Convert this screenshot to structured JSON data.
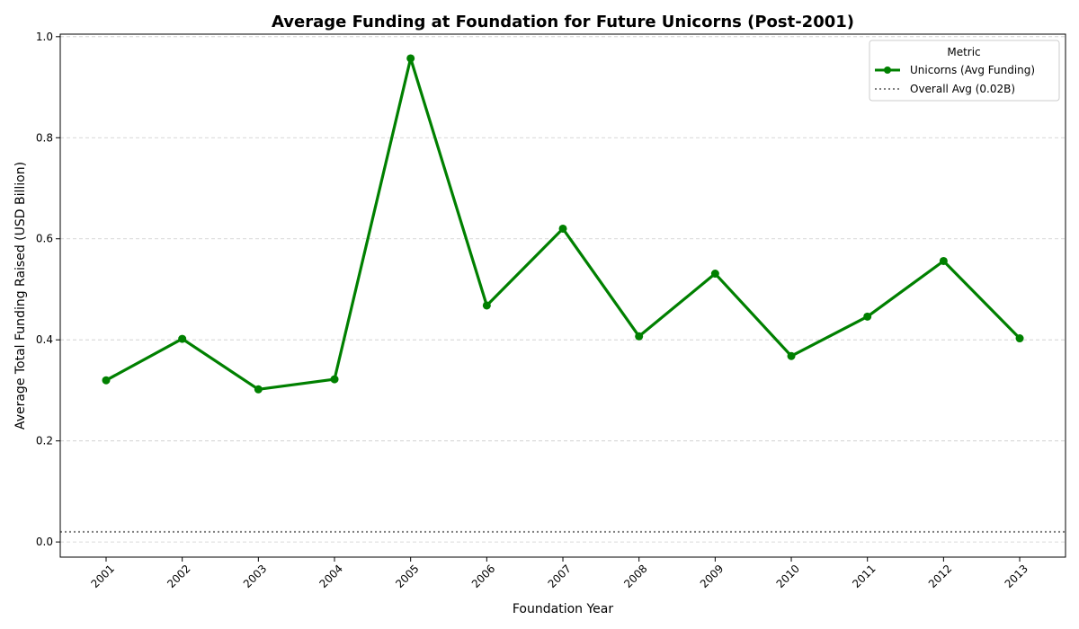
{
  "chart_data": {
    "type": "line",
    "title": "Average Funding at Foundation for Future Unicorns (Post-2001)",
    "xlabel": "Foundation Year",
    "ylabel": "Average Total Funding Raised (USD Billion)",
    "x": [
      "2001",
      "2002",
      "2003",
      "2004",
      "2005",
      "2006",
      "2007",
      "2008",
      "2009",
      "2010",
      "2011",
      "2012",
      "2013"
    ],
    "series": [
      {
        "name": "Unicorns (Avg Funding)",
        "color": "#008000",
        "values": [
          0.32,
          0.402,
          0.302,
          0.322,
          0.957,
          0.468,
          0.62,
          0.407,
          0.531,
          0.368,
          0.446,
          0.556,
          0.403
        ]
      }
    ],
    "reference_line": {
      "name": "Overall Avg (0.02B)",
      "value": 0.02,
      "color": "#808080",
      "style": "dotted"
    },
    "ylim": [
      -0.03,
      1.005
    ],
    "yticks": [
      "0.0",
      "0.2",
      "0.4",
      "0.6",
      "0.8",
      "1.0"
    ],
    "grid": "horizontal-dashed",
    "legend": {
      "title": "Metric",
      "placement": "top-right"
    }
  }
}
